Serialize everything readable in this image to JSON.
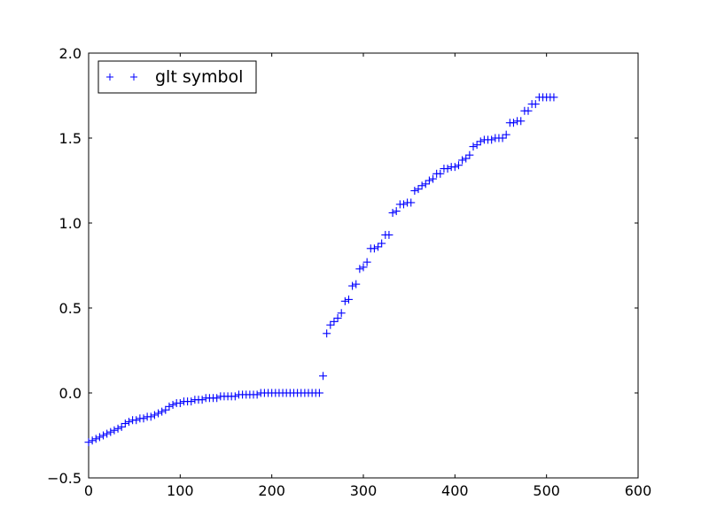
{
  "chart_data": {
    "type": "scatter",
    "title": "",
    "xlabel": "",
    "ylabel": "",
    "xlim": [
      0,
      600
    ],
    "ylim": [
      -0.5,
      2.0
    ],
    "x_ticks": [
      0,
      100,
      200,
      300,
      400,
      500,
      600
    ],
    "y_ticks": [
      -0.5,
      0.0,
      0.5,
      1.0,
      1.5,
      2.0
    ],
    "x_tick_labels": [
      "0",
      "100",
      "200",
      "300",
      "400",
      "500",
      "600"
    ],
    "y_tick_labels": [
      "−0.5",
      "0.0",
      "0.5",
      "1.0",
      "1.5",
      "2.0"
    ],
    "grid": false,
    "legend": {
      "location": "upper-left",
      "label": "glt symbol"
    },
    "series": [
      {
        "name": "glt symbol",
        "color": "#0000ff",
        "marker": "plus",
        "x": [
          0,
          4,
          8,
          12,
          16,
          20,
          24,
          28,
          32,
          36,
          40,
          44,
          48,
          52,
          56,
          60,
          64,
          68,
          72,
          76,
          80,
          84,
          88,
          92,
          96,
          100,
          104,
          108,
          112,
          116,
          120,
          124,
          128,
          132,
          136,
          140,
          144,
          148,
          152,
          156,
          160,
          164,
          168,
          172,
          176,
          180,
          184,
          188,
          192,
          196,
          200,
          204,
          208,
          212,
          216,
          220,
          224,
          228,
          232,
          236,
          240,
          244,
          248,
          252,
          256,
          260,
          264,
          268,
          272,
          276,
          280,
          284,
          288,
          292,
          296,
          300,
          304,
          308,
          312,
          316,
          320,
          324,
          328,
          332,
          336,
          340,
          344,
          348,
          352,
          356,
          360,
          364,
          368,
          372,
          376,
          380,
          384,
          388,
          392,
          396,
          400,
          404,
          408,
          412,
          416,
          420,
          424,
          428,
          432,
          436,
          440,
          444,
          448,
          452,
          456,
          460,
          464,
          468,
          472,
          476,
          480,
          484,
          488,
          492,
          496,
          500,
          504,
          508
        ],
        "y": [
          -0.29,
          -0.28,
          -0.27,
          -0.26,
          -0.25,
          -0.24,
          -0.23,
          -0.22,
          -0.21,
          -0.2,
          -0.18,
          -0.17,
          -0.16,
          -0.16,
          -0.15,
          -0.15,
          -0.14,
          -0.14,
          -0.13,
          -0.12,
          -0.11,
          -0.1,
          -0.08,
          -0.07,
          -0.06,
          -0.06,
          -0.05,
          -0.05,
          -0.05,
          -0.04,
          -0.04,
          -0.04,
          -0.03,
          -0.03,
          -0.03,
          -0.03,
          -0.02,
          -0.02,
          -0.02,
          -0.02,
          -0.02,
          -0.01,
          -0.01,
          -0.01,
          -0.01,
          -0.01,
          -0.01,
          0.0,
          0.0,
          0.0,
          0.0,
          0.0,
          0.0,
          0.0,
          0.0,
          0.0,
          0.0,
          0.0,
          0.0,
          0.0,
          0.0,
          0.0,
          0.0,
          0.0,
          0.1,
          0.35,
          0.4,
          0.42,
          0.44,
          0.47,
          0.54,
          0.55,
          0.63,
          0.64,
          0.73,
          0.74,
          0.77,
          0.85,
          0.85,
          0.86,
          0.88,
          0.93,
          0.93,
          1.06,
          1.07,
          1.11,
          1.11,
          1.12,
          1.12,
          1.19,
          1.2,
          1.22,
          1.23,
          1.25,
          1.26,
          1.29,
          1.29,
          1.32,
          1.32,
          1.33,
          1.33,
          1.34,
          1.37,
          1.38,
          1.4,
          1.45,
          1.46,
          1.48,
          1.49,
          1.49,
          1.49,
          1.5,
          1.5,
          1.5,
          1.52,
          1.59,
          1.59,
          1.6,
          1.6,
          1.66,
          1.66,
          1.7,
          1.7,
          1.74,
          1.74,
          1.74,
          1.74,
          1.74
        ]
      }
    ]
  }
}
